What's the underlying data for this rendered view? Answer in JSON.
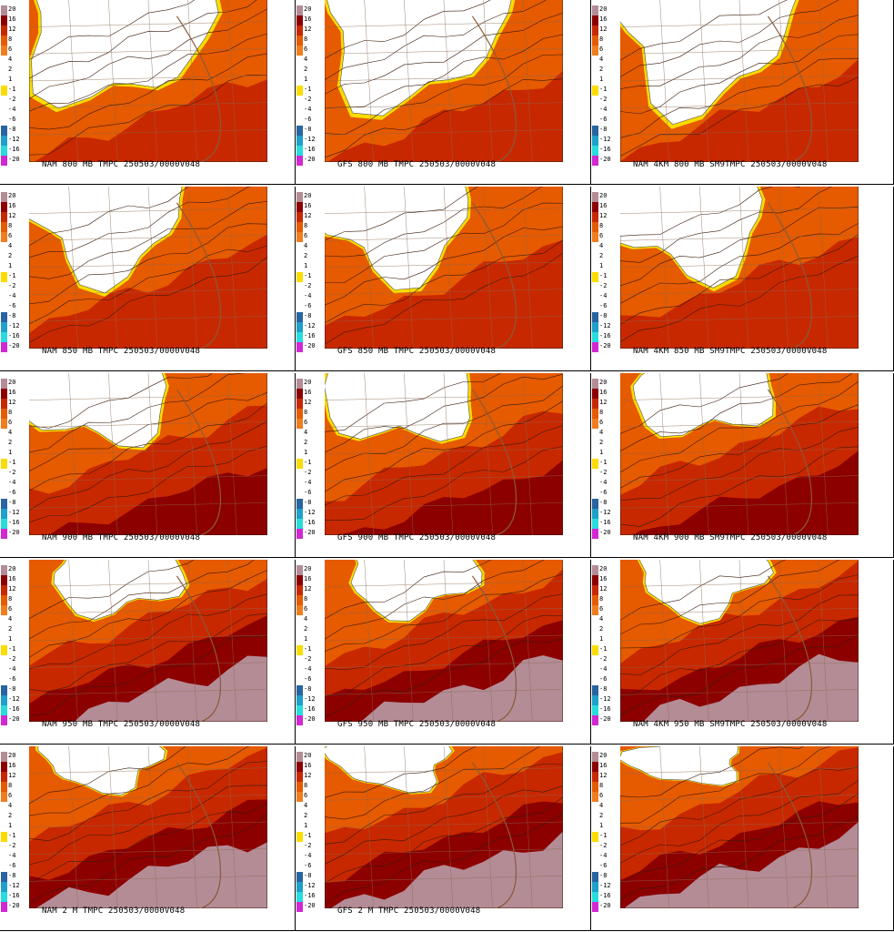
{
  "legend": {
    "labels": [
      "20",
      "16",
      "12",
      "8",
      "6",
      "4",
      "2",
      "1",
      "-1",
      "-2",
      "-4",
      "-6",
      "-8",
      "-12",
      "-16",
      "-20"
    ],
    "colors": [
      "#b48c96",
      "#8c0000",
      "#c82800",
      "#e65a00",
      "#f07d1e",
      "#ffffff",
      "#ffffff",
      "#ffffff",
      "#fadc00",
      "#ffffff",
      "#ffffff",
      "#ffffff",
      "#2864a0",
      "#1ea0c8",
      "#28dcdc",
      "#d228d2"
    ]
  },
  "panels": [
    {
      "caption": "NAM 800 MB TMPC 250503/0000V048",
      "hot": 0.0,
      "warm": 0.1,
      "cold": 0.55
    },
    {
      "caption": "GFS 800 MB TMPC 250503/0000V048",
      "hot": 0.0,
      "warm": 0.1,
      "cold": 0.55
    },
    {
      "caption": "NAM 4KM 800 MB SM9TMPC 250503/0000V048",
      "hot": 0.0,
      "warm": 0.15,
      "cold": 0.55
    },
    {
      "caption": "NAM 850 MB TMPC 250503/0000V048",
      "hot": 0.0,
      "warm": 0.3,
      "cold": 0.45
    },
    {
      "caption": "GFS 850 MB TMPC 250503/0000V048",
      "hot": 0.0,
      "warm": 0.3,
      "cold": 0.45
    },
    {
      "caption": "NAM 4KM 850 MB SM9TMPC 250503/0000V048",
      "hot": 0.0,
      "warm": 0.35,
      "cold": 0.45
    },
    {
      "caption": "NAM 900 MB TMPC 250503/0000V048",
      "hot": 0.1,
      "warm": 0.55,
      "cold": 0.35
    },
    {
      "caption": "GFS 900 MB TMPC 250503/0000V048",
      "hot": 0.1,
      "warm": 0.5,
      "cold": 0.35
    },
    {
      "caption": "NAM 4KM 900 MB SM9TMPC 250503/0000V048",
      "hot": 0.15,
      "warm": 0.6,
      "cold": 0.3
    },
    {
      "caption": "NAM 950 MB TMPC 250503/0000V048",
      "hot": 0.45,
      "warm": 0.75,
      "cold": 0.25
    },
    {
      "caption": "GFS 950 MB TMPC 250503/0000V048",
      "hot": 0.45,
      "warm": 0.75,
      "cold": 0.25
    },
    {
      "caption": "NAM 4KM 950 MB SM9TMPC 250503/0000V048",
      "hot": 0.5,
      "warm": 0.8,
      "cold": 0.25
    },
    {
      "caption": "NAM 2 M TMPC 250503/0000V048",
      "hot": 0.55,
      "warm": 0.85,
      "cold": 0.18
    },
    {
      "caption": "GFS 2 M TMPC 250503/0000V048",
      "hot": 0.55,
      "warm": 0.85,
      "cold": 0.18
    },
    {
      "caption": "",
      "hot": 0.6,
      "warm": 0.9,
      "cold": 0.15
    }
  ]
}
